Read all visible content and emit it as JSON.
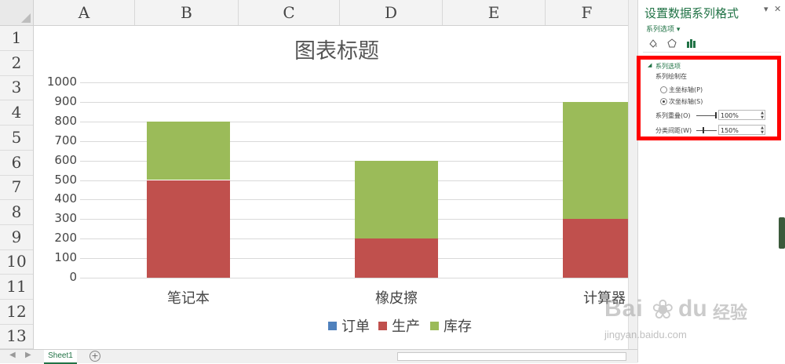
{
  "columns": [
    "A",
    "B",
    "C",
    "D",
    "E",
    "F"
  ],
  "rows": [
    "1",
    "2",
    "3",
    "4",
    "5",
    "6",
    "7",
    "8",
    "9",
    "10",
    "11",
    "12",
    "13"
  ],
  "chart_data": {
    "type": "bar",
    "stacked": true,
    "title": "图表标题",
    "categories": [
      "笔记本",
      "橡皮擦",
      "计算器"
    ],
    "series": [
      {
        "name": "订单",
        "values": [
          0,
          0,
          0
        ],
        "color": "#4f81bd"
      },
      {
        "name": "生产",
        "values": [
          500,
          200,
          300
        ],
        "color": "#c0504d"
      },
      {
        "name": "库存",
        "values": [
          300,
          400,
          600
        ],
        "color": "#9bbb59"
      }
    ],
    "ylim": [
      0,
      1000
    ],
    "yticks": [
      "0",
      "100",
      "200",
      "300",
      "400",
      "500",
      "600",
      "700",
      "800",
      "900",
      "1000"
    ],
    "grid": true,
    "legend_position": "bottom"
  },
  "sheet_tab": "Sheet1",
  "panel": {
    "title": "设置数据系列格式",
    "subtitle": "系列选项",
    "section": "系列选项",
    "plot_on": "系列绘制在",
    "primary_axis": "主坐标轴(P)",
    "secondary_axis": "次坐标轴(S)",
    "overlap_label": "系列重叠(O)",
    "overlap_value": "100%",
    "gap_label": "分类间距(W)",
    "gap_value": "150%",
    "selected_axis": "secondary"
  },
  "watermark": {
    "brand": "Bai",
    "brand2": "经验",
    "url": "jingyan.baidu.com"
  }
}
